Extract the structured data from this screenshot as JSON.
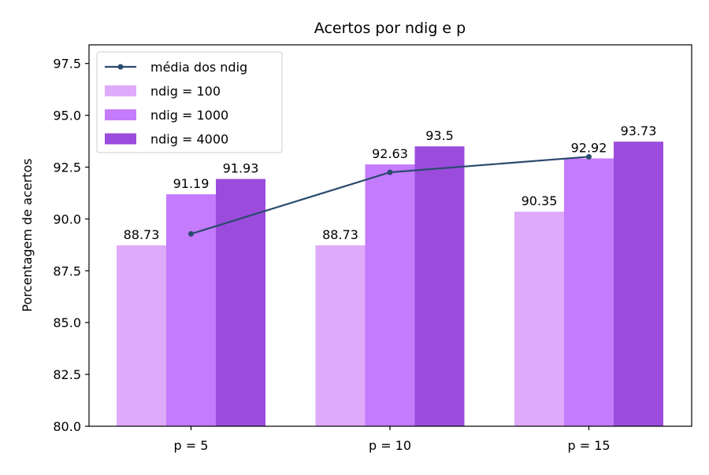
{
  "chart_data": {
    "type": "bar",
    "title": "Acertos por ndig e p",
    "xlabel": "",
    "ylabel": "Porcentagem de acertos",
    "categories": [
      "p = 5",
      "p = 10",
      "p = 15"
    ],
    "ylim": [
      80.0,
      98.4
    ],
    "yticks": [
      "80.0",
      "82.5",
      "85.0",
      "87.5",
      "90.0",
      "92.5",
      "95.0",
      "97.5"
    ],
    "grid": false,
    "legend_position": "top-left",
    "series": [
      {
        "name": "ndig = 100",
        "type": "bar",
        "color": "#dfaaf9",
        "values": [
          88.73,
          88.73,
          90.35
        ],
        "labels": [
          "88.73",
          "88.73",
          "90.35"
        ]
      },
      {
        "name": "ndig = 1000",
        "type": "bar",
        "color": "#c47bfc",
        "values": [
          91.19,
          92.63,
          92.92
        ],
        "labels": [
          "91.19",
          "92.63",
          "92.92"
        ]
      },
      {
        "name": "ndig = 4000",
        "type": "bar",
        "color": "#9b4cdd",
        "values": [
          91.93,
          93.5,
          93.73
        ],
        "labels": [
          "91.93",
          "93.5",
          "93.73"
        ]
      },
      {
        "name": "média dos ndig",
        "type": "line",
        "color": "#2a4a6e",
        "values": [
          89.28,
          92.25,
          93.0
        ]
      }
    ]
  }
}
